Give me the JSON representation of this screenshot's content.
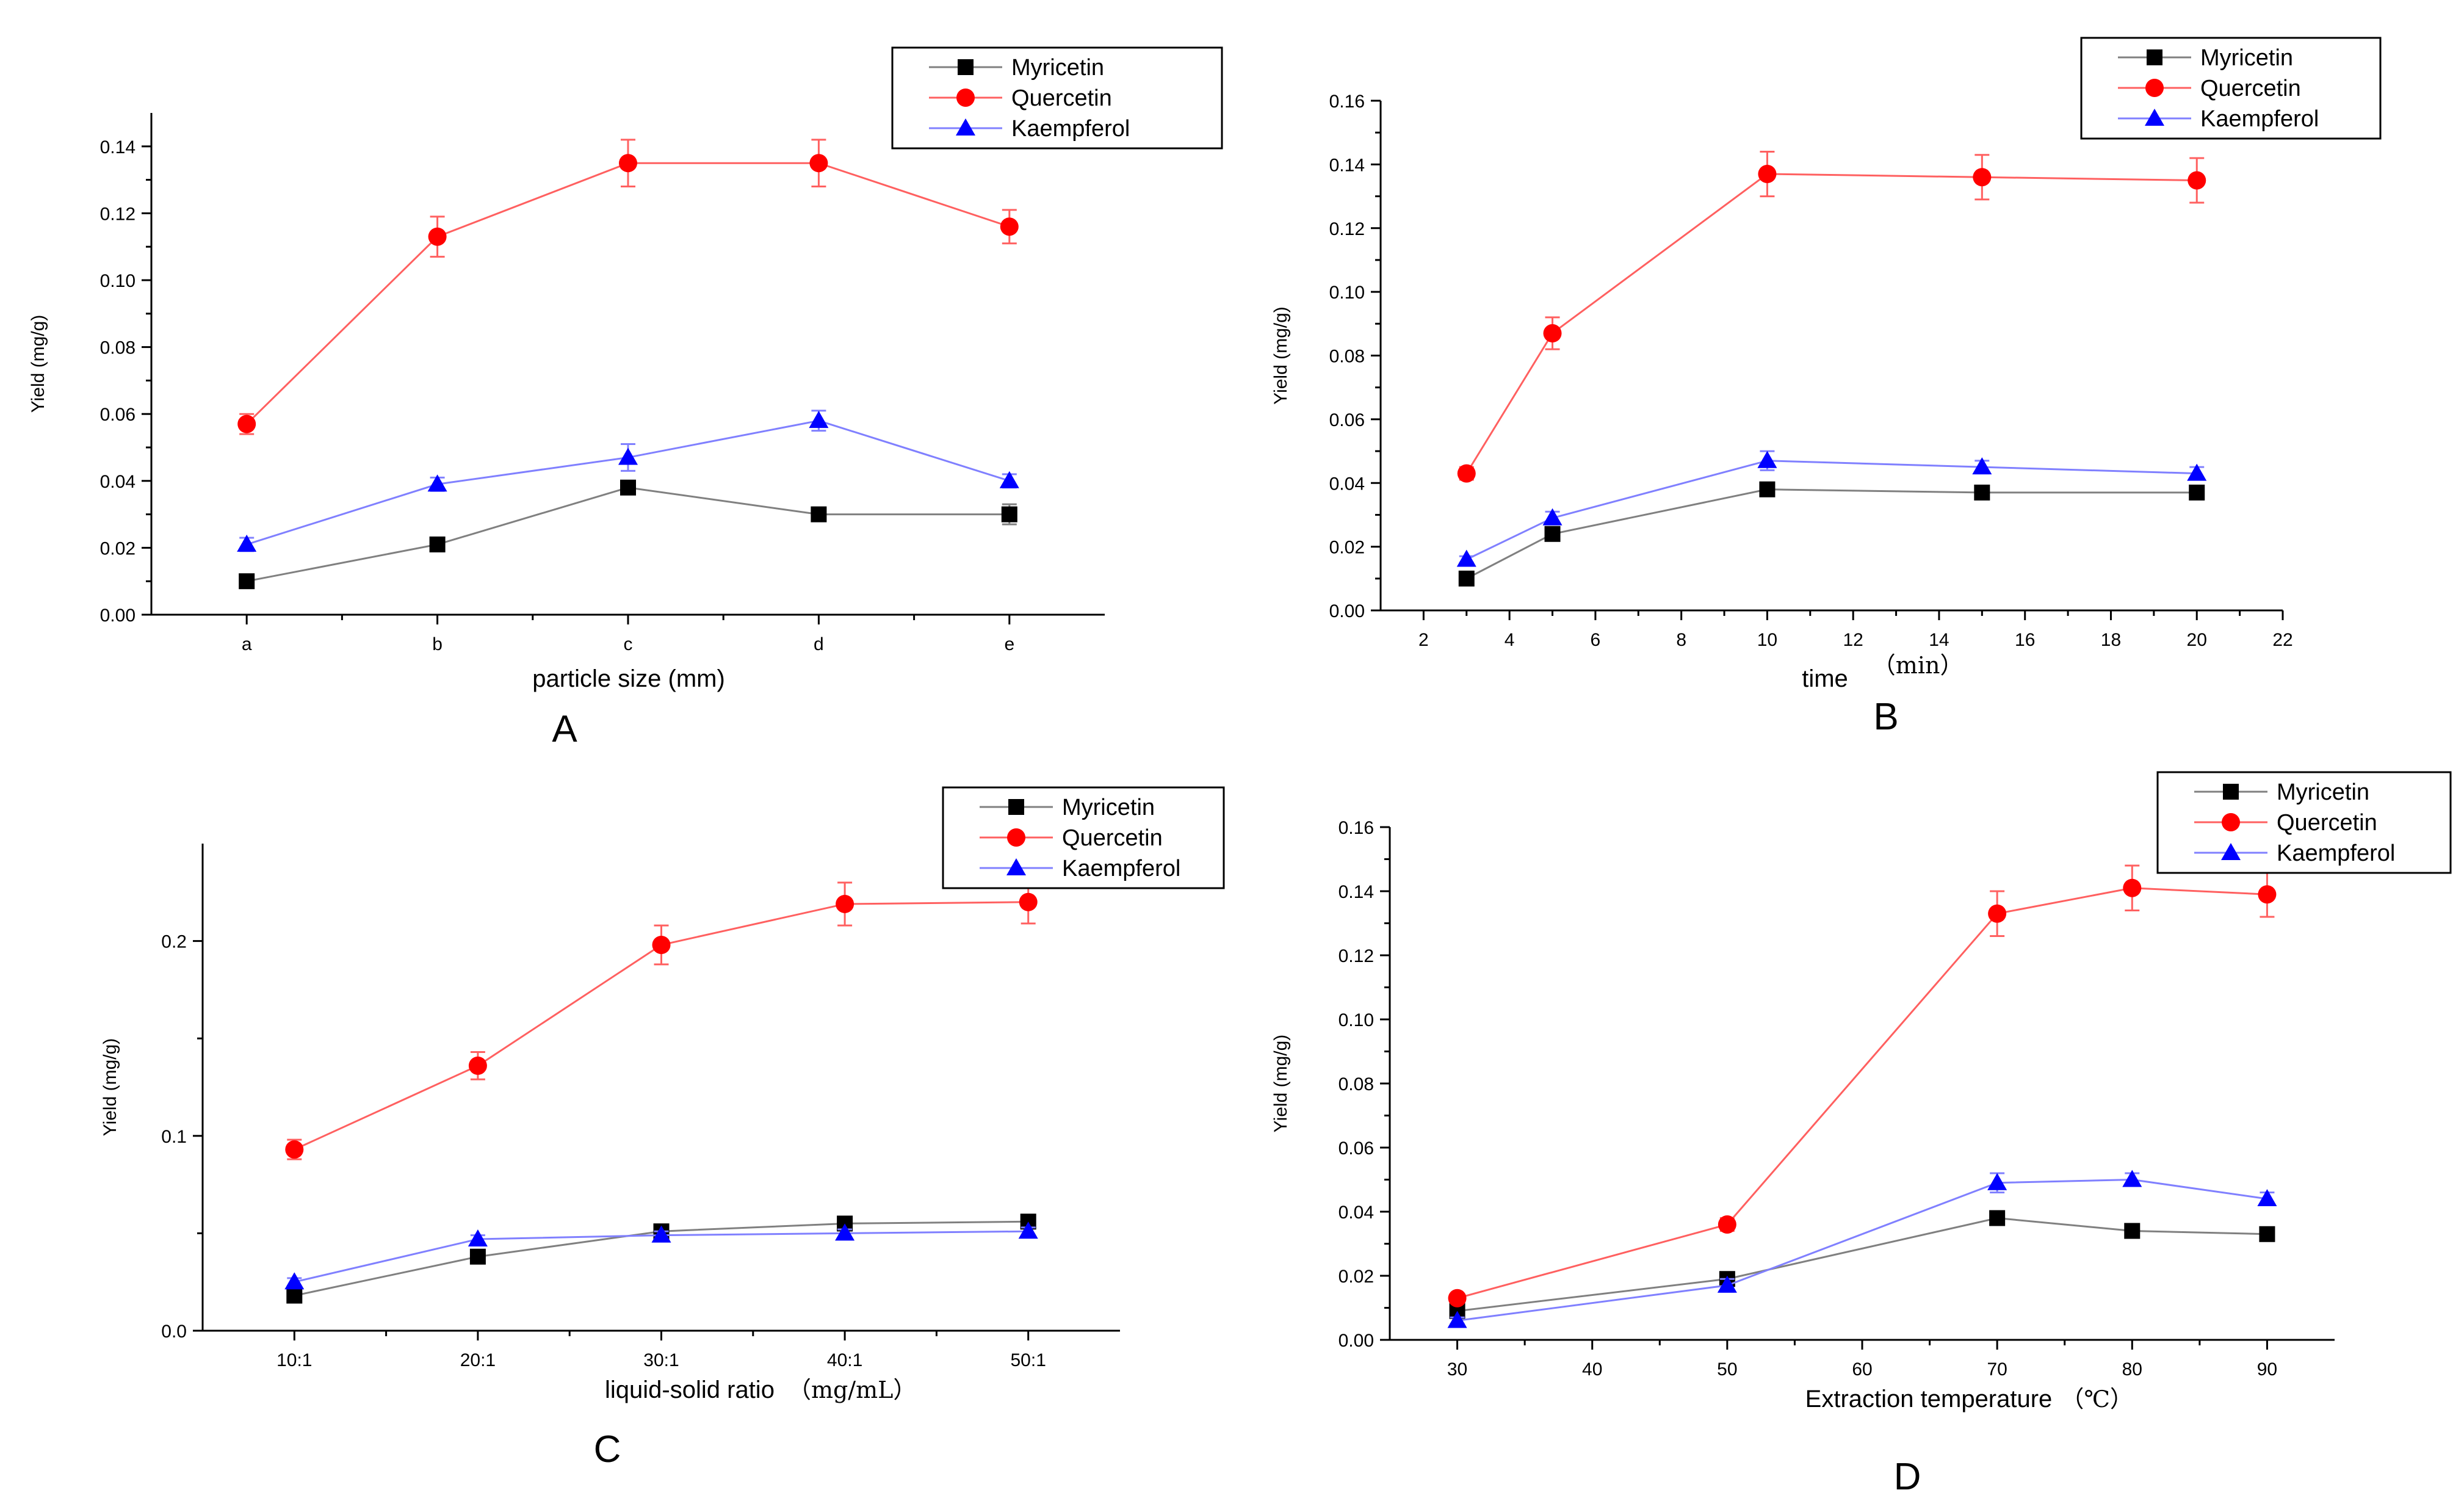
{
  "series_styles": [
    {
      "name": "Myricetin",
      "color": "#808080",
      "marker_color": "#000000",
      "marker": "square"
    },
    {
      "name": "Quercetin",
      "color": "#ff6060",
      "marker_color": "#ff0000",
      "marker": "circle"
    },
    {
      "name": "Kaempferol",
      "color": "#8080ff",
      "marker_color": "#0000ff",
      "marker": "triangle"
    }
  ],
  "chart_data": [
    {
      "type": "line",
      "panel": "A",
      "xlabel": "particle size (mm)",
      "xlabel_suffix": "",
      "ylabel": "Yield (mg/g)",
      "categories": [
        "a",
        "b",
        "c",
        "d",
        "e"
      ],
      "x": [
        1,
        2,
        3,
        4,
        5
      ],
      "xlim": [
        0.5,
        5.5
      ],
      "xticks": [
        1,
        2,
        3,
        4,
        5
      ],
      "ylim": [
        0,
        0.15
      ],
      "yticks": [
        0.0,
        0.02,
        0.04,
        0.06,
        0.08,
        0.1,
        0.12,
        0.14
      ],
      "ytick_labels": [
        "0.00",
        "0.02",
        "0.04",
        "0.06",
        "0.08",
        "0.10",
        "0.12",
        "0.14"
      ],
      "legend": "top-right",
      "series": [
        {
          "name": "Myricetin",
          "values": [
            0.01,
            0.021,
            0.038,
            0.03,
            0.03
          ],
          "errors": [
            0.001,
            0.001,
            0.002,
            0.001,
            0.003
          ]
        },
        {
          "name": "Quercetin",
          "values": [
            0.057,
            0.113,
            0.135,
            0.135,
            0.116
          ],
          "errors": [
            0.003,
            0.006,
            0.007,
            0.007,
            0.005
          ]
        },
        {
          "name": "Kaempferol",
          "values": [
            0.021,
            0.039,
            0.047,
            0.058,
            0.04
          ],
          "errors": [
            0.002,
            0.002,
            0.004,
            0.003,
            0.002
          ]
        }
      ]
    },
    {
      "type": "line",
      "panel": "B",
      "xlabel": "time",
      "xlabel_suffix": "（min）",
      "ylabel": "Yield (mg/g)",
      "x": [
        3,
        5,
        10,
        15,
        20
      ],
      "xlim": [
        1,
        22
      ],
      "xticks": [
        2,
        4,
        6,
        8,
        10,
        12,
        14,
        16,
        18,
        20,
        22
      ],
      "ylim": [
        0,
        0.16
      ],
      "yticks": [
        0.0,
        0.02,
        0.04,
        0.06,
        0.08,
        0.1,
        0.12,
        0.14,
        0.16
      ],
      "ytick_labels": [
        "0.00",
        "0.02",
        "0.04",
        "0.06",
        "0.08",
        "0.10",
        "0.12",
        "0.14",
        "0.16"
      ],
      "legend": "top-right",
      "series": [
        {
          "name": "Myricetin",
          "values": [
            0.01,
            0.024,
            0.038,
            0.037,
            0.037
          ],
          "errors": [
            0.001,
            0.001,
            0.002,
            0.001,
            0.001
          ]
        },
        {
          "name": "Quercetin",
          "values": [
            0.043,
            0.087,
            0.137,
            0.136,
            0.135
          ],
          "errors": [
            0.002,
            0.005,
            0.007,
            0.007,
            0.007
          ]
        },
        {
          "name": "Kaempferol",
          "values": [
            0.016,
            0.029,
            0.047,
            0.045,
            0.043
          ],
          "errors": [
            0.001,
            0.002,
            0.003,
            0.002,
            0.002
          ]
        }
      ]
    },
    {
      "type": "line",
      "panel": "C",
      "xlabel": "liquid-solid ratio",
      "xlabel_suffix": "（mg/mL）",
      "ylabel": "Yield (mg/g)",
      "categories": [
        "10:1",
        "20:1",
        "30:1",
        "40:1",
        "50:1"
      ],
      "x": [
        1,
        2,
        3,
        4,
        5
      ],
      "xlim": [
        0.5,
        5.5
      ],
      "xticks": [
        1,
        2,
        3,
        4,
        5
      ],
      "ylim": [
        0,
        0.25
      ],
      "yticks": [
        0.0,
        0.1,
        0.2
      ],
      "ytick_labels": [
        "0.0",
        "0.1",
        "0.2"
      ],
      "legend": "top-right",
      "series": [
        {
          "name": "Myricetin",
          "values": [
            0.018,
            0.038,
            0.051,
            0.055,
            0.056
          ],
          "errors": [
            0.002,
            0.002,
            0.003,
            0.002,
            0.002
          ]
        },
        {
          "name": "Quercetin",
          "values": [
            0.093,
            0.136,
            0.198,
            0.219,
            0.22
          ],
          "errors": [
            0.005,
            0.007,
            0.01,
            0.011,
            0.011
          ]
        },
        {
          "name": "Kaempferol",
          "values": [
            0.025,
            0.047,
            0.049,
            0.05,
            0.051
          ],
          "errors": [
            0.002,
            0.002,
            0.002,
            0.002,
            0.002
          ]
        }
      ]
    },
    {
      "type": "line",
      "panel": "D",
      "xlabel": "Extraction temperature",
      "xlabel_suffix": "（℃）",
      "ylabel": "Yield (mg/g)",
      "x": [
        30,
        50,
        70,
        80,
        90
      ],
      "xlim": [
        25,
        95
      ],
      "xticks": [
        30,
        40,
        50,
        60,
        70,
        80,
        90
      ],
      "ylim": [
        0,
        0.16
      ],
      "yticks": [
        0.0,
        0.02,
        0.04,
        0.06,
        0.08,
        0.1,
        0.12,
        0.14,
        0.16
      ],
      "ytick_labels": [
        "0.00",
        "0.02",
        "0.04",
        "0.06",
        "0.08",
        "0.10",
        "0.12",
        "0.14",
        "0.16"
      ],
      "legend": "top-right",
      "series": [
        {
          "name": "Myricetin",
          "values": [
            0.009,
            0.019,
            0.038,
            0.034,
            0.033
          ],
          "errors": [
            0.001,
            0.001,
            0.002,
            0.002,
            0.002
          ]
        },
        {
          "name": "Quercetin",
          "values": [
            0.013,
            0.036,
            0.133,
            0.141,
            0.139
          ],
          "errors": [
            0.001,
            0.002,
            0.007,
            0.007,
            0.007
          ]
        },
        {
          "name": "Kaempferol",
          "values": [
            0.006,
            0.017,
            0.049,
            0.05,
            0.044
          ],
          "errors": [
            0.001,
            0.002,
            0.003,
            0.002,
            0.002
          ]
        }
      ]
    }
  ]
}
